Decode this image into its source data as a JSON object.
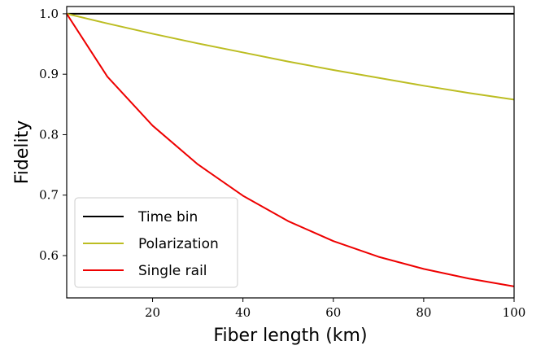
{
  "chart_data": {
    "type": "line",
    "title": "",
    "xlabel": "Fiber length (km)",
    "ylabel": "Fidelity",
    "xlim": [
      1,
      100
    ],
    "ylim": [
      0.53,
      1.012
    ],
    "xticks": [
      20,
      40,
      60,
      80,
      100
    ],
    "yticks": [
      0.6,
      0.7,
      0.8,
      0.9,
      1.0
    ],
    "ytick_labels": [
      "0.6",
      "0.7",
      "0.8",
      "0.9",
      "1.0"
    ],
    "grid": false,
    "legend_position": "lower-left",
    "x": [
      1,
      10,
      20,
      30,
      40,
      50,
      60,
      70,
      80,
      90,
      100
    ],
    "series": [
      {
        "name": "Time bin",
        "color": "#000000",
        "values": [
          1.0,
          1.0,
          1.0,
          1.0,
          1.0,
          1.0,
          1.0,
          1.0,
          1.0,
          1.0,
          1.0
        ]
      },
      {
        "name": "Polarization",
        "color": "#bcbd22",
        "values": [
          1.0,
          0.984,
          0.967,
          0.951,
          0.936,
          0.921,
          0.907,
          0.894,
          0.881,
          0.869,
          0.858
        ]
      },
      {
        "name": "Single rail",
        "color": "#ee0000",
        "values": [
          1.0,
          0.896,
          0.815,
          0.751,
          0.699,
          0.657,
          0.624,
          0.598,
          0.578,
          0.562,
          0.549
        ]
      }
    ]
  }
}
